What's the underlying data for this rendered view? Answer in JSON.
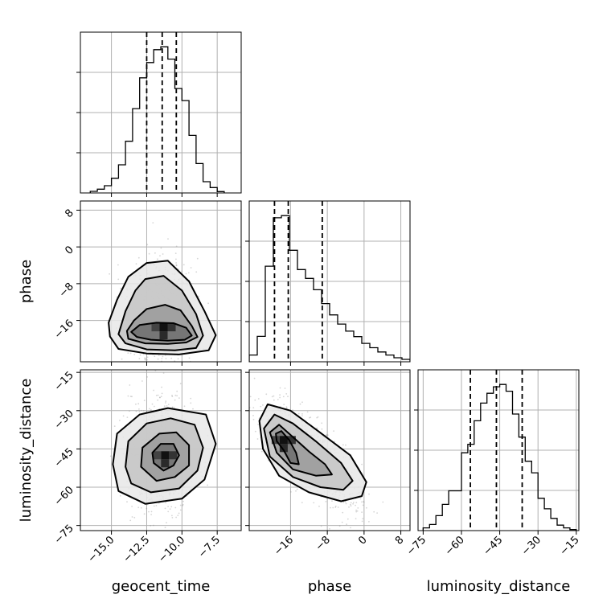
{
  "chart_data": {
    "type": "corner",
    "parameters": [
      "geocent_time",
      "phase",
      "luminosity_distance"
    ],
    "axes": {
      "geocent_time": {
        "range": [
          -17.2,
          -5.8
        ],
        "ticks": [
          -15.0,
          -12.5,
          -10.0,
          -7.5
        ],
        "tick_labels": [
          "−15.0",
          "−12.5",
          "−10.0",
          "−7.5"
        ],
        "label": "geocent_time"
      },
      "phase": {
        "range": [
          -25,
          10
        ],
        "ticks": [
          -16,
          -8,
          0,
          8
        ],
        "tick_labels": [
          "−16",
          "−8",
          "0",
          "8"
        ],
        "label": "phase"
      },
      "luminosity_distance": {
        "range": [
          -77,
          -14
        ],
        "ticks": [
          -75,
          -60,
          -45,
          -30,
          -15
        ],
        "tick_labels": [
          "−75",
          "−60",
          "−45",
          "−30",
          "−15"
        ],
        "label": "luminosity_distance"
      }
    },
    "histograms": [
      {
        "parameter": "geocent_time",
        "bin_edges": [
          -16.5,
          -16.0,
          -15.5,
          -15.0,
          -14.5,
          -14.0,
          -13.5,
          -13.0,
          -12.5,
          -12.0,
          -11.5,
          -11.0,
          -10.5,
          -10.0,
          -9.5,
          -9.0,
          -8.5,
          -8.0,
          -7.5,
          -7.0
        ],
        "counts": [
          0.6,
          1.4,
          2.7,
          5.5,
          10.5,
          19.3,
          31.5,
          43,
          48.7,
          53.5,
          54.6,
          50,
          39,
          34.5,
          21.5,
          11,
          4.2,
          2,
          0.5
        ],
        "quantiles": [
          -12.5,
          -11.4,
          -10.4
        ]
      },
      {
        "parameter": "phase",
        "bin_edges": [
          -25,
          -23.25,
          -21.5,
          -19.75,
          -18,
          -16.25,
          -14.5,
          -12.75,
          -11,
          -9.25,
          -7.5,
          -5.75,
          -4,
          -2.25,
          -0.5,
          1.25,
          3,
          4.75,
          6.5,
          8.25,
          10
        ],
        "counts": [
          2.2,
          8.3,
          31.2,
          47,
          47.7,
          36.4,
          30.1,
          27.2,
          23.5,
          19,
          15.3,
          12.3,
          10,
          8.2,
          6,
          4.6,
          3.2,
          2.2,
          1.3,
          0.8
        ],
        "quantiles": [
          -19.5,
          -16.5,
          -9.1
        ]
      },
      {
        "parameter": "luminosity_distance",
        "bin_edges": [
          -75,
          -72.5,
          -70,
          -67.5,
          -65,
          -62.5,
          -60,
          -57.5,
          -55,
          -52.5,
          -50,
          -47.5,
          -45,
          -42.5,
          -40,
          -37.5,
          -35,
          -32.5,
          -30,
          -27.5,
          -25,
          -22.5,
          -20,
          -17.5,
          -15
        ],
        "counts": [
          0.8,
          1.8,
          4.4,
          7.7,
          11.7,
          11.7,
          22.9,
          25.4,
          32.3,
          37.5,
          40.4,
          42.3,
          43,
          41,
          34.3,
          27.5,
          20.4,
          17,
          9.5,
          6.4,
          3.6,
          1.6,
          0.8,
          0.3
        ],
        "quantiles": [
          -56.5,
          -46.3,
          -36.2
        ]
      }
    ],
    "joint_distributions": [
      {
        "x": "geocent_time",
        "y": "phase",
        "mode": [
          -11.3,
          -17.5
        ],
        "contours": [
          [
            [
              -13.6,
              -18.5
            ],
            [
              -13.2,
              -19.6
            ],
            [
              -12.2,
              -20.2
            ],
            [
              -11.0,
              -20.4
            ],
            [
              -9.8,
              -20.2
            ],
            [
              -9.3,
              -19.3
            ],
            [
              -9.7,
              -17.6
            ],
            [
              -10.6,
              -16.6
            ],
            [
              -11.8,
              -16.5
            ],
            [
              -13.0,
              -17.0
            ]
          ],
          [
            [
              -13.9,
              -18.3
            ],
            [
              -13.8,
              -20.0
            ],
            [
              -12.6,
              -21.0
            ],
            [
              -11.0,
              -21.1
            ],
            [
              -9.7,
              -20.8
            ],
            [
              -8.9,
              -19.6
            ],
            [
              -9.3,
              -17.2
            ],
            [
              -10.1,
              -13.8
            ],
            [
              -11.2,
              -12.6
            ],
            [
              -12.5,
              -13.5
            ],
            [
              -13.4,
              -16.0
            ]
          ],
          [
            [
              -14.5,
              -19.0
            ],
            [
              -14.0,
              -21.0
            ],
            [
              -12.5,
              -22.3
            ],
            [
              -10.5,
              -22.5
            ],
            [
              -9.0,
              -22.0
            ],
            [
              -8.5,
              -19.3
            ],
            [
              -9.0,
              -14.6
            ],
            [
              -10.0,
              -9.5
            ],
            [
              -11.3,
              -6.3
            ],
            [
              -12.6,
              -7.0
            ],
            [
              -13.3,
              -9.5
            ],
            [
              -14.0,
              -14.0
            ]
          ],
          [
            [
              -15.1,
              -19.5
            ],
            [
              -14.5,
              -22.2
            ],
            [
              -12.5,
              -23.2
            ],
            [
              -10.2,
              -23.4
            ],
            [
              -8.1,
              -22.5
            ],
            [
              -7.6,
              -19.2
            ],
            [
              -8.4,
              -14.0
            ],
            [
              -9.5,
              -7.5
            ],
            [
              -11.0,
              -3.0
            ],
            [
              -12.5,
              -3.5
            ],
            [
              -13.8,
              -6.5
            ],
            [
              -14.6,
              -11.5
            ],
            [
              -15.2,
              -16.5
            ]
          ]
        ]
      },
      {
        "x": "geocent_time",
        "y": "luminosity_distance",
        "mode": [
          -11.2,
          -47.5
        ],
        "contours": [
          [
            [
              -12.0,
              -50.5
            ],
            [
              -12.1,
              -46.5
            ],
            [
              -11.5,
              -43.0
            ],
            [
              -10.6,
              -43.0
            ],
            [
              -10.2,
              -47.5
            ],
            [
              -10.6,
              -51.5
            ],
            [
              -11.3,
              -53.5
            ]
          ],
          [
            [
              -12.9,
              -52.0
            ],
            [
              -12.8,
              -44.5
            ],
            [
              -11.6,
              -39.0
            ],
            [
              -10.4,
              -38.5
            ],
            [
              -9.5,
              -43.5
            ],
            [
              -9.5,
              -51.5
            ],
            [
              -10.5,
              -56.0
            ],
            [
              -11.8,
              -57.5
            ]
          ],
          [
            [
              -14.0,
              -52.0
            ],
            [
              -13.8,
              -42.0
            ],
            [
              -12.5,
              -35.0
            ],
            [
              -10.8,
              -33.0
            ],
            [
              -9.1,
              -35.5
            ],
            [
              -8.5,
              -44.5
            ],
            [
              -8.9,
              -53.5
            ],
            [
              -10.2,
              -60.5
            ],
            [
              -12.2,
              -62.0
            ],
            [
              -13.6,
              -58.5
            ]
          ],
          [
            [
              -14.9,
              -51.0
            ],
            [
              -14.6,
              -39.0
            ],
            [
              -13.0,
              -31.5
            ],
            [
              -11.0,
              -29.0
            ],
            [
              -8.3,
              -31.5
            ],
            [
              -7.6,
              -43.0
            ],
            [
              -8.4,
              -57.0
            ],
            [
              -10.0,
              -64.5
            ],
            [
              -12.6,
              -66.5
            ],
            [
              -14.5,
              -61.5
            ]
          ]
        ]
      },
      {
        "x": "phase",
        "y": "luminosity_distance",
        "mode": [
          -17.5,
          -41.5
        ],
        "contours": [
          [
            [
              -19.2,
              -39.0
            ],
            [
              -18.0,
              -38.0
            ],
            [
              -16.3,
              -41.5
            ],
            [
              -14.8,
              -46.5
            ],
            [
              -14.2,
              -51.0
            ],
            [
              -16.0,
              -50.5
            ],
            [
              -17.5,
              -45.5
            ],
            [
              -19.0,
              -42.0
            ]
          ],
          [
            [
              -20.5,
              -38.5
            ],
            [
              -18.5,
              -35.5
            ],
            [
              -16.0,
              -39.5
            ],
            [
              -12.0,
              -46.0
            ],
            [
              -8.5,
              -51.0
            ],
            [
              -7.0,
              -55.0
            ],
            [
              -10.5,
              -55.5
            ],
            [
              -15.5,
              -53.0
            ],
            [
              -19.0,
              -46.5
            ]
          ],
          [
            [
              -21.8,
              -37.0
            ],
            [
              -19.5,
              -31.5
            ],
            [
              -15.5,
              -35.0
            ],
            [
              -10.5,
              -42.0
            ],
            [
              -5.0,
              -50.5
            ],
            [
              -2.5,
              -57.5
            ],
            [
              -4.5,
              -61.0
            ],
            [
              -9.5,
              -60.0
            ],
            [
              -15.5,
              -56.0
            ],
            [
              -20.5,
              -48.0
            ]
          ],
          [
            [
              -22.8,
              -34.0
            ],
            [
              -21.0,
              -27.5
            ],
            [
              -16.0,
              -30.0
            ],
            [
              -10.0,
              -38.0
            ],
            [
              -3.0,
              -47.5
            ],
            [
              0.5,
              -58.0
            ],
            [
              -0.5,
              -63.5
            ],
            [
              -5.0,
              -65.5
            ],
            [
              -12.0,
              -62.0
            ],
            [
              -18.5,
              -55.5
            ],
            [
              -22.0,
              -45.0
            ]
          ]
        ]
      }
    ]
  }
}
